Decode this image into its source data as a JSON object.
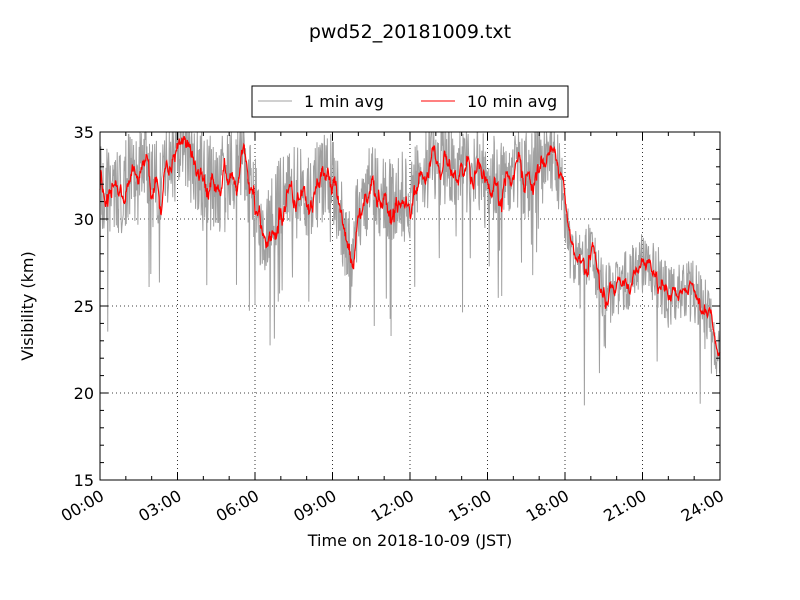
{
  "chart_data": {
    "type": "line",
    "title": "pwd52_20181009.txt",
    "xlabel": "Time on 2018-10-09 (JST)",
    "ylabel": "Visibility (km)",
    "xlim": [
      "00:00",
      "24:00"
    ],
    "ylim": [
      15,
      35
    ],
    "x_tick_labels": [
      "00:00",
      "03:00",
      "06:00",
      "09:00",
      "12:00",
      "15:00",
      "18:00",
      "21:00",
      "24:00"
    ],
    "y_tick_labels": [
      "15",
      "20",
      "25",
      "30",
      "35"
    ],
    "y_ticks": [
      15,
      20,
      25,
      30,
      35
    ],
    "grid": "dotted",
    "legend_position": "top-center",
    "series": [
      {
        "name": "1 min avg",
        "color": "#a0a0a0",
        "interval_min": 1,
        "x_start": "00:00",
        "x_end": "24:00",
        "trend_anchors_hour": [
          0,
          0.5,
          1,
          1.5,
          2,
          2.5,
          3,
          3.5,
          4,
          4.5,
          5,
          5.5,
          6,
          6.3,
          6.8,
          7.3,
          8,
          8.5,
          9,
          9.3,
          9.7,
          10,
          10.5,
          11,
          11.5,
          12,
          12.5,
          13,
          13.5,
          14,
          14.5,
          15,
          15.5,
          16,
          16.5,
          17,
          17.5,
          17.8,
          18.2,
          18.6,
          19,
          19.5,
          20,
          20.5,
          21,
          21.5,
          22,
          22.5,
          23,
          23.3,
          23.6,
          24
        ],
        "trend_anchors_value": [
          32,
          31,
          32,
          33.5,
          32,
          32.5,
          34.5,
          33.5,
          32.5,
          32,
          32.5,
          33.5,
          31,
          29,
          30.5,
          32,
          31.5,
          32,
          33,
          30,
          28,
          30,
          32,
          31,
          31.5,
          31,
          33,
          33.5,
          33,
          32.5,
          33.5,
          32,
          32.5,
          33,
          32.5,
          33,
          33.5,
          33,
          28,
          27.5,
          28,
          25.5,
          26,
          26.5,
          27.5,
          27,
          25.5,
          25.7,
          25.8,
          25,
          24.5,
          22
        ],
        "noise_amplitude": 2.6,
        "clipped_at": 35
      },
      {
        "name": "10 min avg",
        "color": "#ff0000",
        "interval_min": 1,
        "smoothing_window_min": 10,
        "x_start": "00:00",
        "x_end": "24:00"
      }
    ]
  }
}
